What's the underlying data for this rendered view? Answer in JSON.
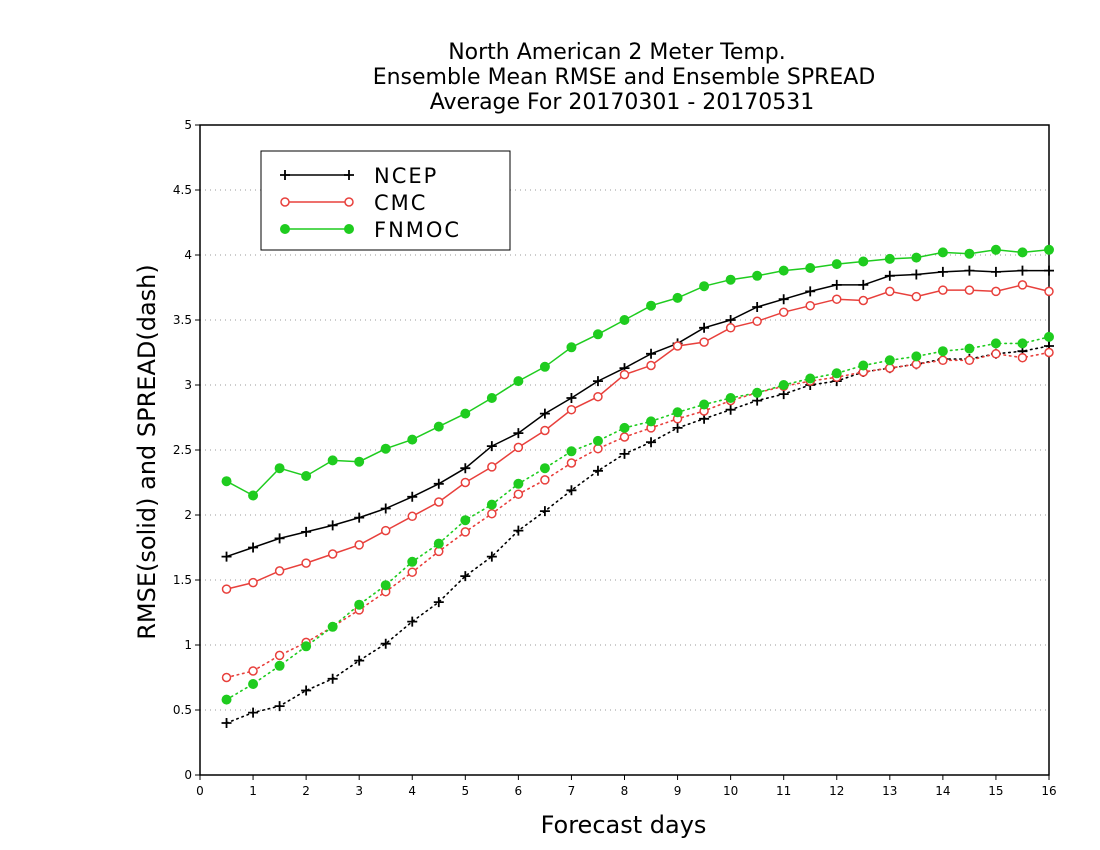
{
  "chart_data": {
    "type": "line",
    "title": [
      "North American 2 Meter Temp.",
      "Ensemble Mean RMSE and Ensemble SPREAD",
      "Average For 20170301 - 20170531"
    ],
    "xlabel": "Forecast days",
    "ylabel": "RMSE(solid) and SPREAD(dash)",
    "xlim": [
      0,
      16
    ],
    "ylim": [
      0,
      5
    ],
    "xticks": [
      "0",
      "1",
      "2",
      "3",
      "4",
      "5",
      "6",
      "7",
      "8",
      "9",
      "10",
      "11",
      "12",
      "13",
      "14",
      "15",
      "16"
    ],
    "yticks": [
      "0",
      "0.5",
      "1",
      "1.5",
      "2",
      "2.5",
      "3",
      "3.5",
      "4",
      "4.5",
      "5"
    ],
    "grid": true,
    "legend_position": "top-left",
    "x": [
      0.5,
      1,
      1.5,
      2,
      2.5,
      3,
      3.5,
      4,
      4.5,
      5,
      5.5,
      6,
      6.5,
      7,
      7.5,
      8,
      8.5,
      9,
      9.5,
      10,
      10.5,
      11,
      11.5,
      12,
      12.5,
      13,
      13.5,
      14,
      14.5,
      15,
      15.5,
      16
    ],
    "series": [
      {
        "name": "NCEP",
        "color": "#000000",
        "marker": "plus",
        "rmse": [
          1.68,
          1.75,
          1.82,
          1.87,
          1.92,
          1.98,
          2.05,
          2.14,
          2.24,
          2.36,
          2.53,
          2.63,
          2.78,
          2.9,
          3.03,
          3.13,
          3.24,
          3.32,
          3.44,
          3.5,
          3.6,
          3.66,
          3.72,
          3.77,
          3.77,
          3.84,
          3.85,
          3.87,
          3.88,
          3.87,
          3.88,
          3.88
        ],
        "spread": [
          0.4,
          0.48,
          0.53,
          0.65,
          0.74,
          0.88,
          1.01,
          1.18,
          1.33,
          1.53,
          1.68,
          1.88,
          2.03,
          2.19,
          2.34,
          2.47,
          2.56,
          2.67,
          2.74,
          2.81,
          2.88,
          2.93,
          3.0,
          3.03,
          3.1,
          3.13,
          3.16,
          3.2,
          3.2,
          3.24,
          3.26,
          3.3
        ]
      },
      {
        "name": "CMC",
        "color": "#e8403c",
        "marker": "open-circle",
        "rmse": [
          1.43,
          1.48,
          1.57,
          1.63,
          1.7,
          1.77,
          1.88,
          1.99,
          2.1,
          2.25,
          2.37,
          2.52,
          2.65,
          2.81,
          2.91,
          3.08,
          3.15,
          3.3,
          3.33,
          3.44,
          3.49,
          3.56,
          3.61,
          3.66,
          3.65,
          3.72,
          3.68,
          3.73,
          3.73,
          3.72,
          3.77,
          3.72
        ],
        "spread": [
          0.75,
          0.8,
          0.92,
          1.02,
          1.14,
          1.27,
          1.41,
          1.56,
          1.72,
          1.87,
          2.01,
          2.16,
          2.27,
          2.4,
          2.51,
          2.6,
          2.67,
          2.74,
          2.8,
          2.88,
          2.94,
          2.99,
          3.03,
          3.06,
          3.1,
          3.13,
          3.16,
          3.19,
          3.19,
          3.24,
          3.21,
          3.25
        ]
      },
      {
        "name": "FNMOC",
        "color": "#1fcc1f",
        "marker": "filled-circle",
        "rmse": [
          2.26,
          2.15,
          2.36,
          2.3,
          2.42,
          2.41,
          2.51,
          2.58,
          2.68,
          2.78,
          2.9,
          3.03,
          3.14,
          3.29,
          3.39,
          3.5,
          3.61,
          3.67,
          3.76,
          3.81,
          3.84,
          3.88,
          3.9,
          3.93,
          3.95,
          3.97,
          3.98,
          4.02,
          4.01,
          4.04,
          4.02,
          4.04
        ],
        "spread": [
          0.58,
          0.7,
          0.84,
          0.99,
          1.14,
          1.31,
          1.46,
          1.64,
          1.78,
          1.96,
          2.08,
          2.24,
          2.36,
          2.49,
          2.57,
          2.67,
          2.72,
          2.79,
          2.85,
          2.9,
          2.94,
          3.0,
          3.05,
          3.09,
          3.15,
          3.19,
          3.22,
          3.26,
          3.28,
          3.32,
          3.32,
          3.37
        ]
      }
    ]
  }
}
